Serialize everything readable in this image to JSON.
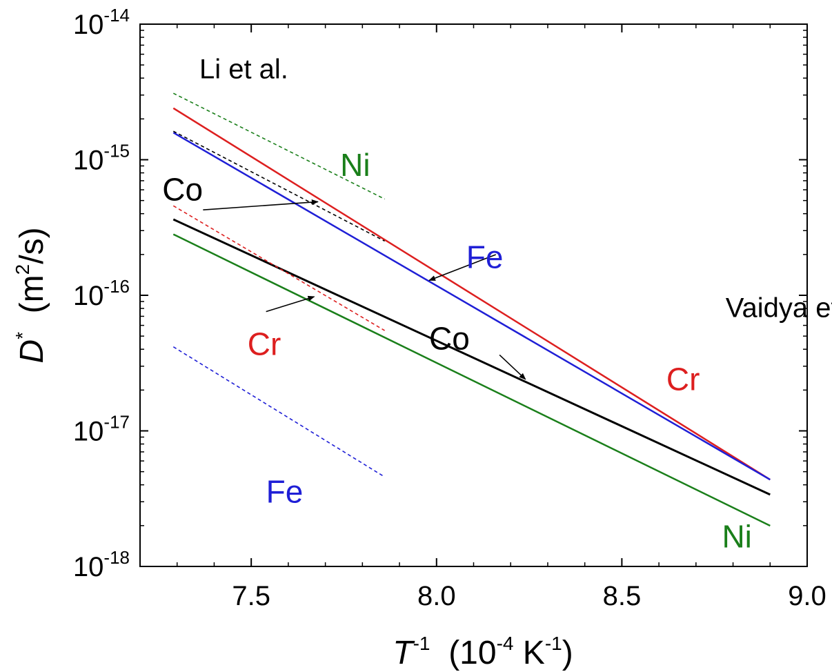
{
  "chart_data": {
    "type": "line",
    "title": "",
    "xlabel": {
      "main": "T",
      "sup": "-1",
      "rest_a": "  (10",
      "sup2": "-4",
      "rest_b": " K",
      "sup3": "-1",
      "rest_c": ")"
    },
    "ylabel": {
      "main": "D",
      "sup": "*",
      "rest_a": "  (m",
      "sup2": "2",
      "rest_b": "/s)"
    },
    "xlim": [
      7.2,
      9.0
    ],
    "ylim_log10": [
      -18,
      -14
    ],
    "y_scale": "log",
    "grid": false,
    "x_ticks": [
      {
        "value": 7.5,
        "label": "7.5"
      },
      {
        "value": 8.0,
        "label": "8.0"
      },
      {
        "value": 8.5,
        "label": "8.5"
      },
      {
        "value": 9.0,
        "label": "9.0"
      }
    ],
    "y_ticks": [
      {
        "exp": -18,
        "base": "10",
        "sup": "-18"
      },
      {
        "exp": -17,
        "base": "10",
        "sup": "-17"
      },
      {
        "exp": -16,
        "base": "10",
        "sup": "-16"
      },
      {
        "exp": -15,
        "base": "10",
        "sup": "-15"
      },
      {
        "exp": -14,
        "base": "10",
        "sup": "-14"
      }
    ],
    "series": [
      {
        "group": "Vaidya et al.",
        "element": "Cr",
        "color": "#dd1f1f",
        "style": "solid",
        "x": [
          7.29,
          8.9
        ],
        "log10_y": [
          -14.62,
          -17.36
        ]
      },
      {
        "group": "Vaidya et al.",
        "element": "Fe",
        "color": "#1f1fd6",
        "style": "solid",
        "x": [
          7.29,
          8.9
        ],
        "log10_y": [
          -14.8,
          -17.36
        ]
      },
      {
        "group": "Vaidya et al.",
        "element": "Co",
        "color": "#000000",
        "style": "solid",
        "x": [
          7.29,
          8.9
        ],
        "log10_y": [
          -15.44,
          -17.47
        ]
      },
      {
        "group": "Vaidya et al.",
        "element": "Ni",
        "color": "#1a7f1a",
        "style": "solid",
        "x": [
          7.29,
          8.9
        ],
        "log10_y": [
          -15.55,
          -17.7
        ]
      },
      {
        "group": "Li et al.",
        "element": "Ni",
        "color": "#1a7f1a",
        "style": "dashed",
        "x": [
          7.29,
          7.86
        ],
        "log10_y": [
          -14.51,
          -15.29
        ]
      },
      {
        "group": "Li et al.",
        "element": "Co",
        "color": "#000000",
        "style": "dashed",
        "x": [
          7.29,
          7.86
        ],
        "log10_y": [
          -14.79,
          -15.6
        ]
      },
      {
        "group": "Li et al.",
        "element": "Cr",
        "color": "#dd1f1f",
        "style": "dashed",
        "x": [
          7.29,
          7.86
        ],
        "log10_y": [
          -15.34,
          -16.26
        ]
      },
      {
        "group": "Li et al.",
        "element": "Fe",
        "color": "#1f1fd6",
        "style": "dashed",
        "x": [
          7.29,
          7.86
        ],
        "log10_y": [
          -16.38,
          -17.34
        ]
      }
    ],
    "annotations": [
      {
        "text": "Li et al.",
        "color": "#000000",
        "x": 7.36,
        "log10_y": -14.4,
        "size": 40
      },
      {
        "text": "Vaidya et al.",
        "color": "#000000",
        "x": 8.78,
        "log10_y": -16.16,
        "size": 40
      },
      {
        "text": "Ni",
        "color": "#1a7f1a",
        "x": 7.74,
        "log10_y": -15.12,
        "size": 46
      },
      {
        "text": "Co",
        "color": "#000000",
        "x": 7.26,
        "log10_y": -15.3,
        "size": 46
      },
      {
        "text": "Fe",
        "color": "#1f1fd6",
        "x": 8.08,
        "log10_y": -15.8,
        "size": 46
      },
      {
        "text": "Cr",
        "color": "#dd1f1f",
        "x": 7.49,
        "log10_y": -16.44,
        "size": 46
      },
      {
        "text": "Co",
        "color": "#000000",
        "x": 7.98,
        "log10_y": -16.4,
        "size": 46
      },
      {
        "text": "Cr",
        "color": "#dd1f1f",
        "x": 8.62,
        "log10_y": -16.7,
        "size": 46
      },
      {
        "text": "Fe",
        "color": "#1f1fd6",
        "x": 7.54,
        "log10_y": -17.53,
        "size": 46
      },
      {
        "text": "Ni",
        "color": "#1a7f1a",
        "x": 8.77,
        "log10_y": -17.86,
        "size": 46
      }
    ],
    "arrows": [
      {
        "from_x": 7.37,
        "from_log10_y": -15.37,
        "to_x": 7.68,
        "to_log10_y": -15.31
      },
      {
        "from_x": 8.16,
        "from_log10_y": -15.7,
        "to_x": 7.98,
        "to_log10_y": -15.89
      },
      {
        "from_x": 7.54,
        "from_log10_y": -16.12,
        "to_x": 7.67,
        "to_log10_y": -16.01
      },
      {
        "from_x": 8.17,
        "from_log10_y": -16.44,
        "to_x": 8.24,
        "to_log10_y": -16.62
      }
    ]
  }
}
